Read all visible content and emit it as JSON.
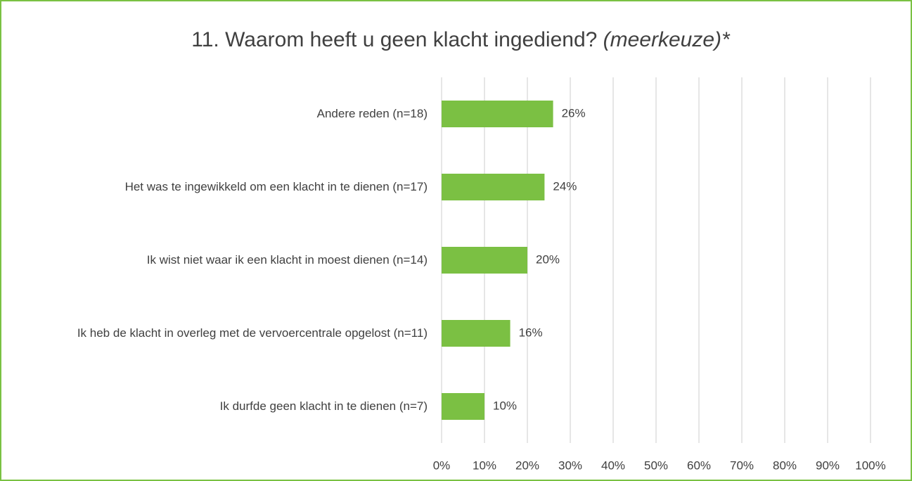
{
  "chart_data": {
    "type": "hbar",
    "title": "11. Waarom heeft u geen klacht ingediend?",
    "title_note": "(meerkeuze)*",
    "categories": [
      "Andere reden (n=18)",
      "Het was te ingewikkeld om een klacht in te dienen (n=17)",
      "Ik wist niet waar ik een klacht in moest dienen (n=14)",
      "Ik heb de klacht in overleg met de vervoercentrale opgelost (n=11)",
      "Ik durfde geen klacht in te dienen (n=7)"
    ],
    "values": [
      26,
      24,
      20,
      16,
      10
    ],
    "value_labels": [
      "26%",
      "24%",
      "20%",
      "16%",
      "10%"
    ],
    "color": "#7bc043",
    "xlim": [
      0,
      100
    ],
    "xticks": [
      {
        "value": 0,
        "label": "0%"
      },
      {
        "value": 10,
        "label": "10%"
      },
      {
        "value": 20,
        "label": "20%"
      },
      {
        "value": 30,
        "label": "30%"
      },
      {
        "value": 40,
        "label": "40%"
      },
      {
        "value": 50,
        "label": "50%"
      },
      {
        "value": 60,
        "label": "60%"
      },
      {
        "value": 70,
        "label": "70%"
      },
      {
        "value": 80,
        "label": "80%"
      },
      {
        "value": 90,
        "label": "90%"
      },
      {
        "value": 100,
        "label": "100%"
      }
    ],
    "grid": true
  }
}
